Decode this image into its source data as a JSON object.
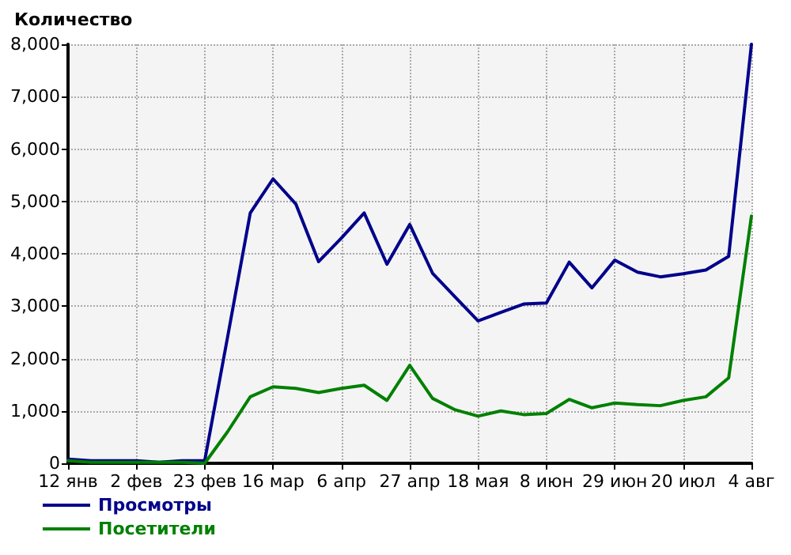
{
  "chart_data": {
    "type": "line",
    "ylabel": "Количество",
    "categories": [
      "12 янв",
      null,
      null,
      "2 фев",
      null,
      null,
      "23 фев",
      null,
      null,
      "16 мар",
      null,
      null,
      "6 апр",
      null,
      null,
      "27 апр",
      null,
      null,
      "18 мая",
      null,
      null,
      "8 июн",
      null,
      null,
      "29 июн",
      null,
      null,
      "20 июл",
      null,
      null,
      "4 авг"
    ],
    "series": [
      {
        "name": "Просмотры",
        "color": "#00008b",
        "values": [
          80,
          50,
          50,
          50,
          20,
          50,
          50,
          2400,
          4780,
          5430,
          4950,
          3850,
          4300,
          4780,
          3800,
          4560,
          3630,
          3170,
          2720,
          2880,
          3040,
          3060,
          3840,
          3350,
          3880,
          3650,
          3560,
          3620,
          3690,
          3950,
          8000
        ]
      },
      {
        "name": "Посетители",
        "color": "#008000",
        "values": [
          50,
          20,
          20,
          20,
          20,
          20,
          0,
          600,
          1270,
          1460,
          1430,
          1350,
          1430,
          1490,
          1200,
          1870,
          1240,
          1020,
          900,
          1000,
          930,
          950,
          1220,
          1060,
          1150,
          1120,
          1100,
          1200,
          1270,
          1630,
          4720
        ]
      }
    ],
    "ylim": [
      0,
      8000
    ],
    "yticks": [
      {
        "value": 0,
        "label": "0"
      },
      {
        "value": 1000,
        "label": "1,000"
      },
      {
        "value": 2000,
        "label": "2,000"
      },
      {
        "value": 3000,
        "label": "3,000"
      },
      {
        "value": 4000,
        "label": "4,000"
      },
      {
        "value": 5000,
        "label": "5,000"
      },
      {
        "value": 6000,
        "label": "6,000"
      },
      {
        "value": 7000,
        "label": "7,000"
      },
      {
        "value": 8000,
        "label": "8,000"
      }
    ],
    "grid": true,
    "legend": "bottom left",
    "marker": "none",
    "line_style": "solid"
  }
}
